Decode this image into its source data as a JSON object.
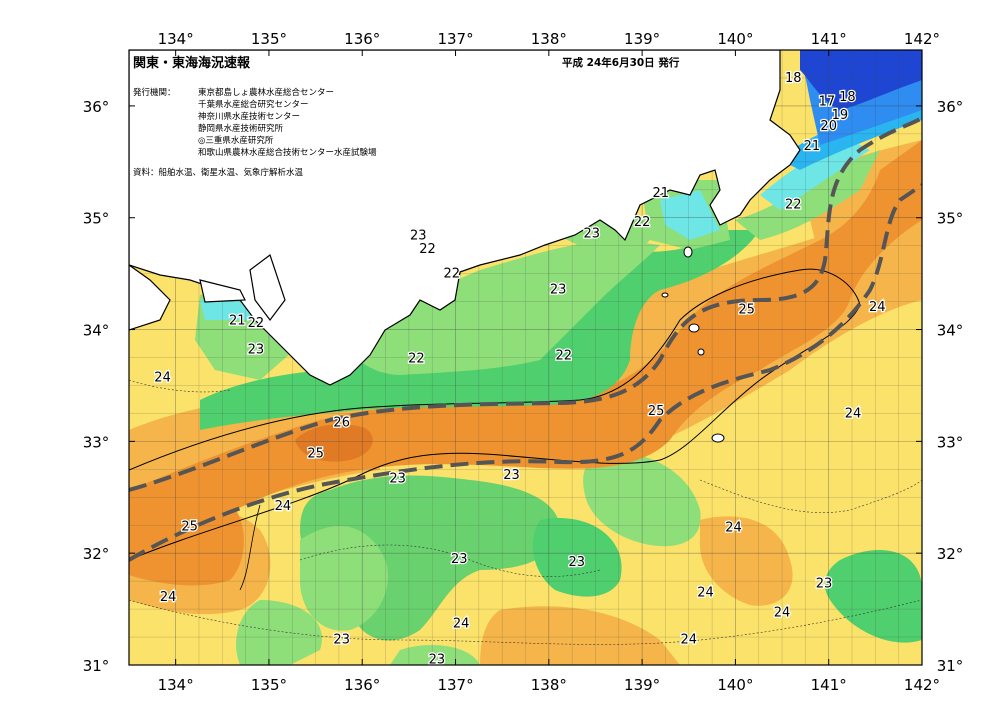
{
  "title": "関東・東海海況速報",
  "issue_date": "平成 24年6月30日 発行",
  "issuers_label": "発行機関：",
  "issuers": [
    "東京都島しょ農林水産総合センター",
    "千葉県水産総合研究センター",
    "神奈川県水産技術センター",
    "静岡県水産技術研究所",
    "◎三重県水産研究所",
    "和歌山県農林水産総合技術センター水産試験場"
  ],
  "source": "資料：船舶水温、衛星水温、気象庁解析水温",
  "axes": {
    "lon_ticks": [
      "134°",
      "135°",
      "136°",
      "137°",
      "138°",
      "139°",
      "140°",
      "141°",
      "142°"
    ],
    "lat_ticks": [
      "36°",
      "35°",
      "34°",
      "33°",
      "32°",
      "31°"
    ],
    "lon_range": [
      133.5,
      142
    ],
    "lat_range": [
      31,
      36.5
    ]
  },
  "colors": {
    "t18": "#1e46d2",
    "t19": "#2f8cf0",
    "t20": "#2ab4f0",
    "t21": "#6ee6e6",
    "t22": "#8ede7a",
    "t23": "#4fcf6e",
    "t24": "#fbe26a",
    "t25": "#f5b54a",
    "t26": "#ef9330",
    "t27": "#e07a24",
    "land": "#ffffff",
    "kuroshio_axis": "#555555"
  },
  "temperature_labels": [
    {
      "t": "18",
      "lon": 140.62,
      "lat": 36.25
    },
    {
      "t": "17",
      "lon": 140.98,
      "lat": 36.04
    },
    {
      "t": "18",
      "lon": 141.2,
      "lat": 36.08
    },
    {
      "t": "19",
      "lon": 141.12,
      "lat": 35.92
    },
    {
      "t": "20",
      "lon": 141.0,
      "lat": 35.82
    },
    {
      "t": "21",
      "lon": 140.82,
      "lat": 35.64
    },
    {
      "t": "21",
      "lon": 139.2,
      "lat": 35.22
    },
    {
      "t": "22",
      "lon": 140.62,
      "lat": 35.12
    },
    {
      "t": "22",
      "lon": 139.0,
      "lat": 34.96
    },
    {
      "t": "23",
      "lon": 138.46,
      "lat": 34.86
    },
    {
      "t": "23",
      "lon": 136.6,
      "lat": 34.84
    },
    {
      "t": "22",
      "lon": 136.7,
      "lat": 34.72
    },
    {
      "t": "22",
      "lon": 136.96,
      "lat": 34.5
    },
    {
      "t": "23",
      "lon": 138.1,
      "lat": 34.36
    },
    {
      "t": "21",
      "lon": 134.66,
      "lat": 34.08
    },
    {
      "t": "22",
      "lon": 134.86,
      "lat": 34.06
    },
    {
      "t": "23",
      "lon": 134.86,
      "lat": 33.82
    },
    {
      "t": "22",
      "lon": 136.58,
      "lat": 33.74
    },
    {
      "t": "22",
      "lon": 138.16,
      "lat": 33.77
    },
    {
      "t": "24",
      "lon": 133.86,
      "lat": 33.57
    },
    {
      "t": "25",
      "lon": 140.12,
      "lat": 34.18
    },
    {
      "t": "24",
      "lon": 141.52,
      "lat": 34.2
    },
    {
      "t": "25",
      "lon": 139.15,
      "lat": 33.27
    },
    {
      "t": "24",
      "lon": 141.26,
      "lat": 33.25
    },
    {
      "t": "26",
      "lon": 135.78,
      "lat": 33.17
    },
    {
      "t": "25",
      "lon": 135.5,
      "lat": 32.89
    },
    {
      "t": "23",
      "lon": 136.38,
      "lat": 32.67
    },
    {
      "t": "23",
      "lon": 137.6,
      "lat": 32.7
    },
    {
      "t": "24",
      "lon": 135.15,
      "lat": 32.42
    },
    {
      "t": "25",
      "lon": 134.15,
      "lat": 32.24
    },
    {
      "t": "24",
      "lon": 139.98,
      "lat": 32.23
    },
    {
      "t": "23",
      "lon": 137.04,
      "lat": 31.95
    },
    {
      "t": "23",
      "lon": 138.3,
      "lat": 31.92
    },
    {
      "t": "23",
      "lon": 140.95,
      "lat": 31.73
    },
    {
      "t": "24",
      "lon": 133.92,
      "lat": 31.61
    },
    {
      "t": "24",
      "lon": 139.68,
      "lat": 31.65
    },
    {
      "t": "24",
      "lon": 140.5,
      "lat": 31.47
    },
    {
      "t": "24",
      "lon": 137.06,
      "lat": 31.37
    },
    {
      "t": "23",
      "lon": 135.78,
      "lat": 31.23
    },
    {
      "t": "24",
      "lon": 139.5,
      "lat": 31.23
    },
    {
      "t": "23",
      "lon": 136.8,
      "lat": 31.05
    }
  ]
}
